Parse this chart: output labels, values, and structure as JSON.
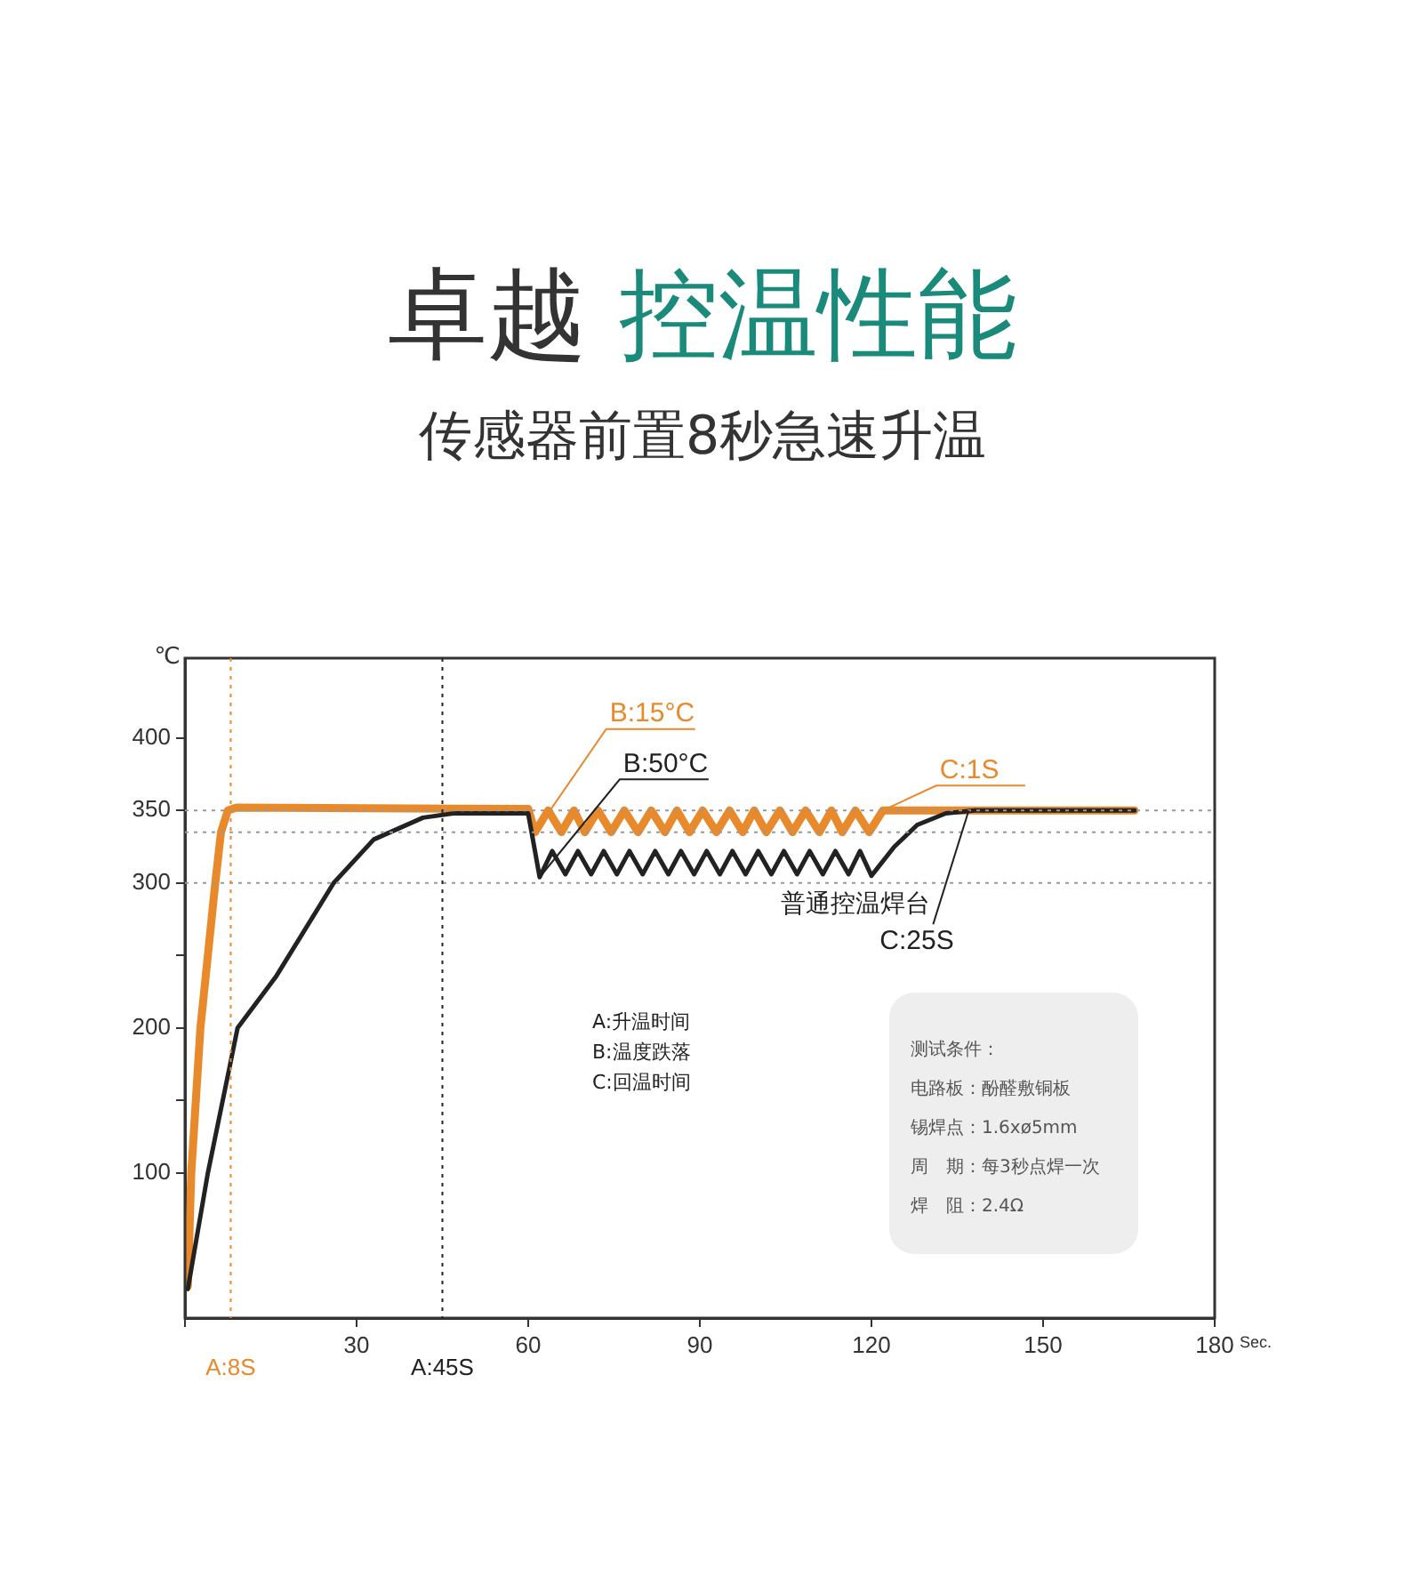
{
  "chart_data": {
    "type": "line",
    "title": "卓越 控温性能",
    "subtitle": "传感器前置8秒急速升温",
    "xlabel": "Sec.",
    "ylabel": "℃",
    "xlim": [
      0,
      180
    ],
    "xticks": [
      {
        "value": 0,
        "label": null
      },
      30,
      60,
      90,
      120,
      150,
      180
    ],
    "ylim": [
      0,
      455
    ],
    "yticks": [
      100,
      {
        "value": 150,
        "label": null
      },
      200,
      {
        "value": 250,
        "label": null
      },
      300,
      350,
      400
    ],
    "series": [
      {
        "color": "#e8892b",
        "x": [
          0.5,
          1.1,
          2.7,
          5.3,
          6.3,
          7.5,
          9,
          60,
          61.2,
          63.5,
          65.8,
          68,
          69.9,
          72.2,
          74.5,
          76.8,
          79.2,
          81.5,
          83.9,
          86,
          88.2,
          90.5,
          92.9,
          95.2,
          97.5,
          99.5,
          101.6,
          104,
          106.2,
          108.5,
          110.9,
          113,
          114.9,
          117.2,
          119.6,
          122,
          166
        ],
        "values": [
          22,
          100,
          200,
          300,
          335,
          350,
          352,
          351,
          335,
          350,
          335,
          350,
          335,
          350,
          335,
          350,
          335,
          350,
          335,
          350,
          335,
          350,
          335,
          350,
          335,
          350,
          335,
          350,
          335,
          350,
          335,
          350,
          335,
          350,
          335,
          350,
          350
        ]
      },
      {
        "name": "普通控温焊台",
        "color": "#222222",
        "x": [
          0.5,
          4,
          9.2,
          16,
          26,
          33,
          41.6,
          47,
          60,
          62,
          64.2,
          66.5,
          68.7,
          71,
          73.2,
          75.5,
          77.7,
          80,
          82.2,
          84.5,
          86.7,
          89,
          91.2,
          93.5,
          95.7,
          98,
          100.2,
          102.5,
          104.7,
          107,
          109.2,
          111.5,
          113.7,
          116,
          118,
          120,
          124,
          128,
          133,
          138,
          166
        ],
        "values": [
          20,
          100,
          200,
          236,
          300,
          330,
          345,
          348,
          348,
          304,
          322,
          306,
          322,
          306,
          322,
          306,
          322,
          306,
          322,
          306,
          322,
          306,
          322,
          306,
          322,
          306,
          322,
          306,
          322,
          306,
          322,
          306,
          322,
          306,
          322,
          305,
          325,
          340,
          348,
          350,
          350
        ]
      }
    ],
    "ref_lines": [
      {
        "axis": "y",
        "value": 350,
        "line_style": "dotted",
        "color": "#999999"
      },
      {
        "axis": "y",
        "value": 335,
        "line_style": "dotted",
        "color": "#999999"
      },
      {
        "axis": "y",
        "value": 300,
        "line_style": "dotted",
        "color": "#999999"
      },
      {
        "axis": "x",
        "value": 8,
        "label": "A:8S",
        "line_style": "dotted",
        "color": "#e8892b"
      },
      {
        "axis": "x",
        "value": 45,
        "label": "A:45S",
        "line_style": "dotted",
        "color": "#222222"
      }
    ],
    "annotations": [
      "A:升温时间",
      "B:温度跌落",
      "C:回温时间",
      "测试条件：",
      "电路板：酚醛敷铜板",
      "锡焊点：1.6xø5mm",
      "周　期：每3秒点焊一次",
      "焊　阻：2.4Ω",
      {
        "text": "B:15°C",
        "x": 61.2,
        "y": 335
      },
      {
        "text": "B:50°C",
        "x": 62,
        "y": 304
      },
      {
        "text": "C:1S",
        "x": 122,
        "y": 350
      },
      {
        "text": "C:25S",
        "x": 137,
        "y": 350
      }
    ],
    "line_style": "solid",
    "marker": "none",
    "legend": false
  }
}
